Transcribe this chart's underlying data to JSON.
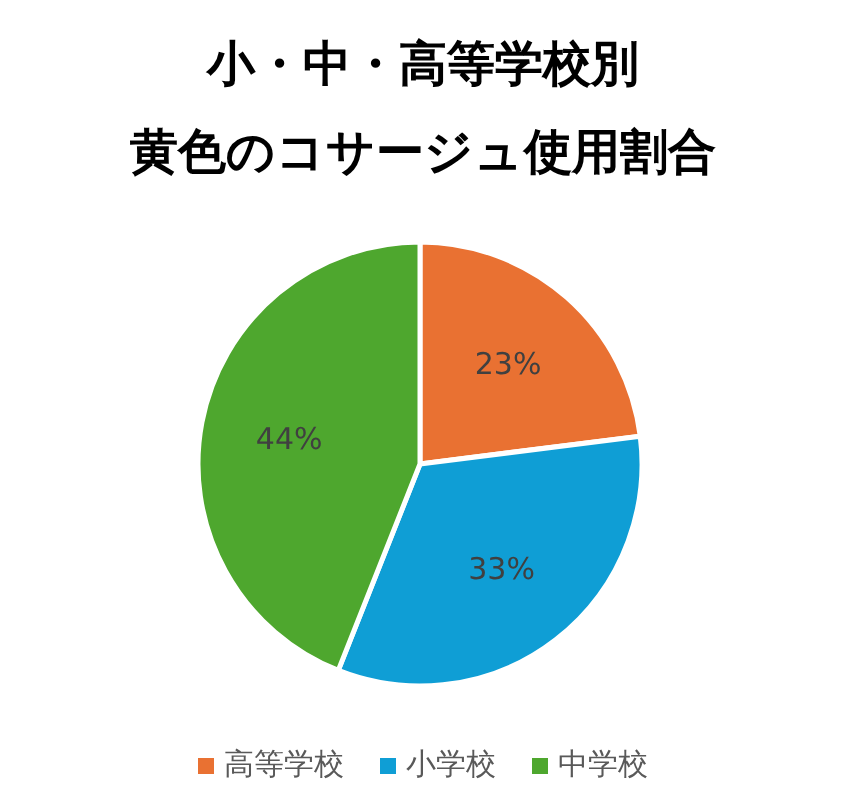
{
  "chart_data": {
    "type": "pie",
    "title": "小・中・高等学校別",
    "subtitle": "黄色のコサージュ使用割合",
    "categories": [
      "高等学校",
      "小学校",
      "中学校"
    ],
    "values": [
      23,
      33,
      44
    ],
    "value_labels": [
      "23%",
      "33%",
      "44%"
    ],
    "colors": [
      "#e97132",
      "#0f9ed5",
      "#4ea72e"
    ],
    "legend": "bottom"
  }
}
